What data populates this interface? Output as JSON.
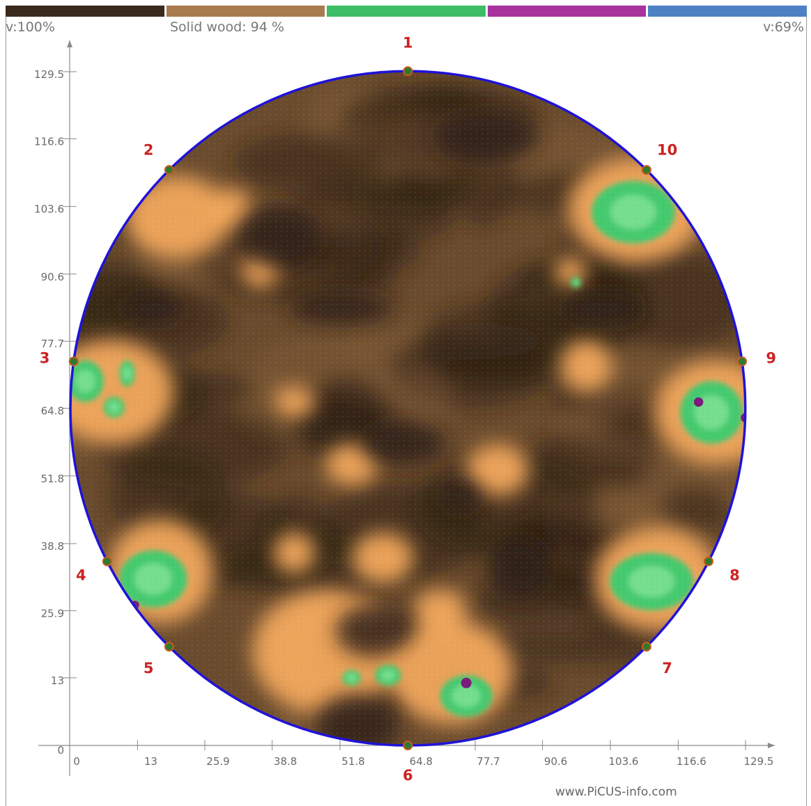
{
  "header": {
    "velocity_min_label": "v:100%",
    "solid_wood_label": "Solid wood: 94 %",
    "velocity_max_label": "v:69%"
  },
  "colorbar": [
    "#3a2a1d",
    "#a87b4f",
    "#3dbe66",
    "#a8339d",
    "#4e81c4"
  ],
  "colors": {
    "circle": "#1f12d8",
    "sensor_label": "#cc2222",
    "sensor_fill": "#2f7a2e",
    "dark_wood": "#2e1f14",
    "mid_wood": "#6a4b2d",
    "light_wood": "#f2a85c",
    "green": "#45c96e",
    "light_green": "#7fe496",
    "violet": "#7b1a7b"
  },
  "chart_data": {
    "type": "heatmap",
    "units": "cm",
    "xlim": [
      0,
      129.5
    ],
    "ylim": [
      0,
      129.5
    ],
    "x_ticks": [
      "0",
      "13",
      "25.9",
      "38.8",
      "51.8",
      "64.8",
      "77.7",
      "90.6",
      "103.6",
      "116.6",
      "129.5"
    ],
    "y_ticks": [
      "0",
      "13",
      "25.9",
      "38.8",
      "51.8",
      "64.8",
      "77.7",
      "90.6",
      "103.6",
      "116.6",
      "129.5"
    ],
    "center": [
      64.8,
      64.8
    ],
    "radius": 64.8,
    "sensors": [
      {
        "label": "1",
        "angle": 90
      },
      {
        "label": "2",
        "angle": 135
      },
      {
        "label": "3",
        "angle": 172
      },
      {
        "label": "4",
        "angle": 207
      },
      {
        "label": "5",
        "angle": 225
      },
      {
        "label": "6",
        "angle": 270
      },
      {
        "label": "7",
        "angle": 315
      },
      {
        "label": "8",
        "angle": 333
      },
      {
        "label": "9",
        "angle": 8
      },
      {
        "label": "10",
        "angle": 45
      }
    ],
    "zones": [
      {
        "kind": "light",
        "x": 20.5,
        "y": 101.5,
        "rx": 10,
        "ry": 8
      },
      {
        "kind": "light",
        "x": 31,
        "y": 103,
        "rx": 4,
        "ry": 4
      },
      {
        "kind": "light",
        "x": 36.5,
        "y": 91.5,
        "rx": 3.5,
        "ry": 3.5
      },
      {
        "kind": "light",
        "x": 96,
        "y": 91,
        "rx": 3,
        "ry": 3
      },
      {
        "kind": "light",
        "x": 108.5,
        "y": 103,
        "rx": 13,
        "ry": 10
      },
      {
        "kind": "green",
        "x": 108,
        "y": 102.5,
        "rx": 8,
        "ry": 6
      },
      {
        "kind": "light",
        "x": 8,
        "y": 68,
        "rx": 12,
        "ry": 10
      },
      {
        "kind": "green",
        "x": 3,
        "y": 70,
        "rx": 3.5,
        "ry": 4
      },
      {
        "kind": "green",
        "x": 11,
        "y": 71.5,
        "rx": 1.5,
        "ry": 2.5
      },
      {
        "kind": "green",
        "x": 8.5,
        "y": 65,
        "rx": 2,
        "ry": 2
      },
      {
        "kind": "light",
        "x": 124,
        "y": 64,
        "rx": 12,
        "ry": 10
      },
      {
        "kind": "green",
        "x": 123,
        "y": 64,
        "rx": 6,
        "ry": 6
      },
      {
        "kind": "violet",
        "x": 120.5,
        "y": 66,
        "rx": 0.9,
        "ry": 0.9
      },
      {
        "kind": "violet",
        "x": 129.5,
        "y": 63,
        "rx": 0.9,
        "ry": 0.9
      },
      {
        "kind": "light",
        "x": 17.5,
        "y": 33.5,
        "rx": 10,
        "ry": 10
      },
      {
        "kind": "green",
        "x": 16,
        "y": 32,
        "rx": 6.5,
        "ry": 5.5
      },
      {
        "kind": "violet",
        "x": 12.5,
        "y": 27,
        "rx": 0.8,
        "ry": 0.8
      },
      {
        "kind": "light",
        "x": 112.5,
        "y": 32,
        "rx": 12,
        "ry": 10
      },
      {
        "kind": "green",
        "x": 111.5,
        "y": 31.5,
        "rx": 8,
        "ry": 5.5
      },
      {
        "kind": "light",
        "x": 49,
        "y": 18,
        "rx": 14,
        "ry": 12
      },
      {
        "kind": "light",
        "x": 73,
        "y": 14,
        "rx": 12,
        "ry": 10
      },
      {
        "kind": "light",
        "x": 43,
        "y": 37,
        "rx": 4,
        "ry": 4
      },
      {
        "kind": "light",
        "x": 60,
        "y": 36,
        "rx": 6,
        "ry": 5
      },
      {
        "kind": "light",
        "x": 71,
        "y": 26,
        "rx": 5,
        "ry": 4
      },
      {
        "kind": "light",
        "x": 54,
        "y": 54,
        "rx": 5,
        "ry": 4
      },
      {
        "kind": "light",
        "x": 82,
        "y": 53,
        "rx": 6,
        "ry": 5
      },
      {
        "kind": "light",
        "x": 99,
        "y": 73,
        "rx": 5,
        "ry": 5
      },
      {
        "kind": "light",
        "x": 43,
        "y": 66,
        "rx": 4,
        "ry": 3
      },
      {
        "kind": "green",
        "x": 76,
        "y": 9.5,
        "rx": 5,
        "ry": 4
      },
      {
        "kind": "violet",
        "x": 76,
        "y": 12,
        "rx": 1,
        "ry": 1
      },
      {
        "kind": "green",
        "x": 54,
        "y": 13,
        "rx": 1.8,
        "ry": 1.5
      },
      {
        "kind": "green",
        "x": 61,
        "y": 13.5,
        "rx": 2.5,
        "ry": 2
      },
      {
        "kind": "green",
        "x": 97,
        "y": 89,
        "rx": 1,
        "ry": 1
      },
      {
        "kind": "dark",
        "x": 55,
        "y": 4,
        "rx": 8,
        "ry": 6
      },
      {
        "kind": "dark",
        "x": 40,
        "y": 98,
        "rx": 8,
        "ry": 6
      },
      {
        "kind": "dark",
        "x": 16,
        "y": 84,
        "rx": 6,
        "ry": 3
      },
      {
        "kind": "dark",
        "x": 102,
        "y": 84,
        "rx": 8,
        "ry": 3
      },
      {
        "kind": "dark",
        "x": 52,
        "y": 84,
        "rx": 10,
        "ry": 3
      },
      {
        "kind": "dark",
        "x": 86,
        "y": 34,
        "rx": 6,
        "ry": 6
      },
      {
        "kind": "dark",
        "x": 75,
        "y": 48,
        "rx": 4,
        "ry": 3
      },
      {
        "kind": "dark",
        "x": 80,
        "y": 117,
        "rx": 10,
        "ry": 5
      },
      {
        "kind": "dark",
        "x": 64,
        "y": 58,
        "rx": 8,
        "ry": 4
      },
      {
        "kind": "dark",
        "x": 58,
        "y": 22,
        "rx": 7,
        "ry": 5
      }
    ]
  },
  "credit": "www.PiCUS-info.com"
}
